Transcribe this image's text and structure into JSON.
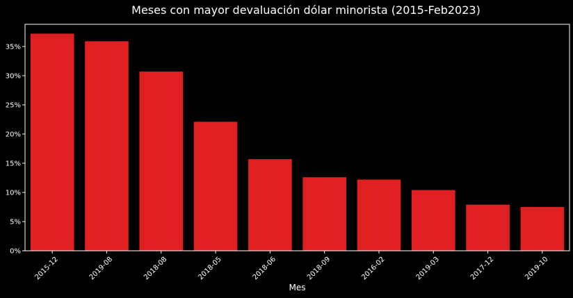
{
  "chart_data": {
    "type": "bar",
    "title": "Meses con mayor devaluación dólar minorista (2015-Feb2023)",
    "xlabel": "Mes",
    "ylabel": "",
    "categories": [
      "2015-12",
      "2019-08",
      "2018-08",
      "2018-05",
      "2018-06",
      "2018-09",
      "2016-02",
      "2019-03",
      "2017-12",
      "2019-10"
    ],
    "values": [
      37.2,
      35.9,
      30.7,
      22.1,
      15.7,
      12.6,
      12.2,
      10.4,
      7.9,
      7.5
    ],
    "ylim": [
      0,
      38.8
    ],
    "yticks": [
      0,
      5,
      10,
      15,
      20,
      25,
      30,
      35
    ],
    "ytick_labels": [
      "0%",
      "5%",
      "10%",
      "15%",
      "20%",
      "25%",
      "30%",
      "35%"
    ],
    "grid": false,
    "bar_color": "#e02020",
    "background_color": "#000000",
    "axes_color": "#ffffff",
    "text_color": "#ffffff"
  }
}
